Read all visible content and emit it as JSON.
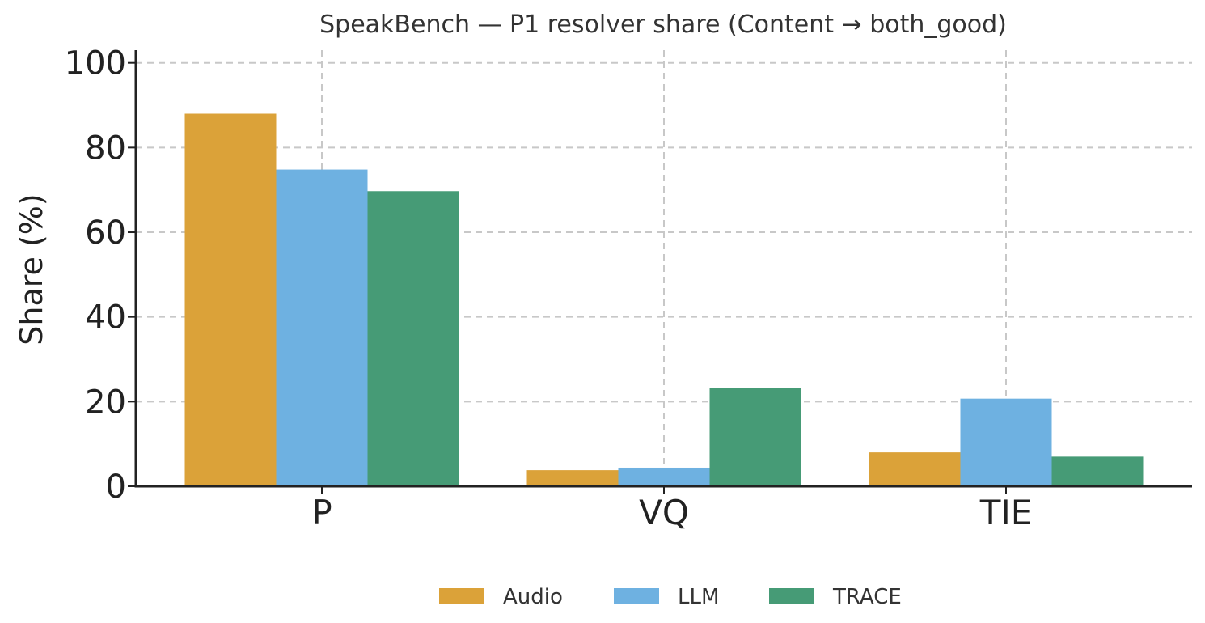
{
  "chart_data": {
    "type": "bar",
    "title": "SpeakBench — P1 resolver share (Content → both_good)",
    "xlabel": "",
    "ylabel": "Share (%)",
    "categories": [
      "P",
      "VQ",
      "TIE"
    ],
    "ylim": [
      0,
      103
    ],
    "yticks": [
      0,
      20,
      40,
      60,
      80,
      100
    ],
    "grid": true,
    "legend_position": "bottom-center",
    "series": [
      {
        "name": "Audio",
        "color": "#DBA239",
        "values": [
          88.0,
          3.8,
          8.0
        ]
      },
      {
        "name": "LLM",
        "color": "#6EB1E1",
        "values": [
          74.8,
          4.4,
          20.7
        ]
      },
      {
        "name": "TRACE",
        "color": "#469B76",
        "values": [
          69.7,
          23.2,
          7.0
        ]
      }
    ]
  }
}
